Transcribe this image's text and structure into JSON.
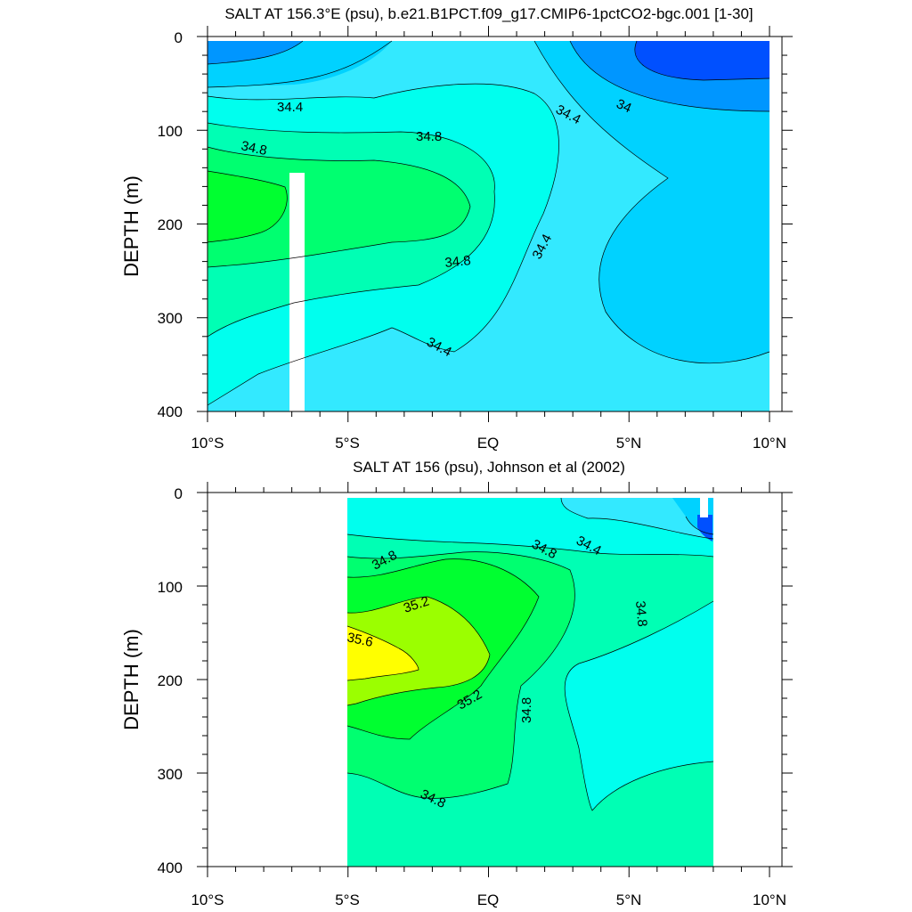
{
  "figure": {
    "panels": [
      {
        "title": "SALT AT 156.3°E (psu), b.e21.B1PCT.f09_g17.CMIP6-1pctCO2-bgc.001 [1-30]",
        "ylabel": "DEPTH (m)",
        "yticks": [
          "0",
          "100",
          "200",
          "300",
          "400"
        ],
        "xticks": [
          "10°S",
          "5°S",
          "EQ",
          "5°N",
          "10°N"
        ]
      },
      {
        "title": "SALT AT 156 (psu), Johnson et al (2002)",
        "ylabel": "DEPTH (m)",
        "yticks": [
          "0",
          "100",
          "200",
          "300",
          "400"
        ],
        "xticks": [
          "10°S",
          "5°S",
          "EQ",
          "5°N",
          "10°N"
        ]
      }
    ]
  },
  "colors": {
    "lt34.0": "#0050ff",
    "34.0-34.2": "#0096ff",
    "34.2-34.4": "#00d2ff",
    "34.4-34.6": "#33e9ff",
    "34.6-34.8": "#00ffee",
    "34.8-35.0": "#00ffb4",
    "35.0-35.2": "#00ff70",
    "35.2-35.4": "#00ff30",
    "35.4-35.6": "#9bff00",
    "gt35.6": "#ffff00"
  },
  "chart_data": [
    {
      "type": "heatmap",
      "title": "SALT AT 156.3°E (psu), b.e21.B1PCT.f09_g17.CMIP6-1pctCO2-bgc.001 [1-30]",
      "xlabel": "",
      "ylabel": "DEPTH (m)",
      "x_range": [
        -10,
        10
      ],
      "y_range": [
        0,
        400
      ],
      "y_reversed": true,
      "contour_interval": 0.2,
      "labeled_contours": [
        {
          "text": "34.4",
          "lon": -7.0,
          "depth": 70
        },
        {
          "text": "34.8",
          "lon": -8.4,
          "depth": 115
        },
        {
          "text": "34.8",
          "lon": -2.0,
          "depth": 102
        },
        {
          "text": "34.8",
          "lon": -1.0,
          "depth": 240
        },
        {
          "text": "34.4",
          "lon": -1.6,
          "depth": 330
        },
        {
          "text": "34.4",
          "lon": 2.9,
          "depth": 75
        },
        {
          "text": "34",
          "lon": 4.8,
          "depth": 68
        },
        {
          "text": "34.4",
          "lon": 1.9,
          "depth": 223
        }
      ],
      "regions": [
        {
          "band": "34.4-34.6",
          "lon": [
            -10,
            10
          ],
          "depth": [
            0,
            400
          ],
          "note": "background"
        },
        {
          "band": "34.2-34.4",
          "lon": [
            2,
            10
          ],
          "depth": [
            0,
            400
          ],
          "note": "northern low-salinity water"
        },
        {
          "band": "34.0-34.2",
          "lon": [
            4,
            10
          ],
          "depth": [
            0,
            80
          ],
          "note": "northern surface"
        },
        {
          "band": "lt34.0",
          "lon": [
            5.5,
            10
          ],
          "depth": [
            0,
            45
          ],
          "note": "northern surface core"
        },
        {
          "band": "34.2-34.4",
          "lon": [
            -10,
            -4.5
          ],
          "depth": [
            0,
            60
          ],
          "note": "southern surface"
        },
        {
          "band": "34.6-34.8",
          "lon": [
            -10,
            2
          ],
          "depth": [
            80,
            340
          ]
        },
        {
          "band": "34.8-35.0",
          "lon": [
            -10,
            0
          ],
          "depth": [
            110,
            300
          ]
        },
        {
          "band": "35.0-35.2",
          "lon": [
            -10,
            -0.6
          ],
          "depth": [
            145,
            215
          ],
          "note": "tongue maximum"
        },
        {
          "band": "35.2-35.4",
          "lon": [
            -10,
            -8.6
          ],
          "depth": [
            160,
            215
          ]
        }
      ],
      "missing": [
        {
          "lon": [
            -7.3,
            -6.8
          ],
          "depth": [
            145,
            400
          ]
        }
      ]
    },
    {
      "type": "heatmap",
      "title": "SALT AT 156 (psu), Johnson et al (2002)",
      "xlabel": "",
      "ylabel": "DEPTH (m)",
      "x_range": [
        -10,
        10
      ],
      "y_range": [
        0,
        400
      ],
      "y_reversed": true,
      "data_lon_extent": [
        -5,
        8
      ],
      "contour_interval": 0.2,
      "labeled_contours": [
        {
          "text": "34.8",
          "lon": -3.6,
          "depth": 70
        },
        {
          "text": "35.2",
          "lon": -2.5,
          "depth": 113
        },
        {
          "text": "35.6",
          "lon": -4.5,
          "depth": 153
        },
        {
          "text": "35.2",
          "lon": -0.5,
          "depth": 222
        },
        {
          "text": "34.8",
          "lon": 1.4,
          "depth": 225
        },
        {
          "text": "34.8",
          "lon": 2.0,
          "depth": 55
        },
        {
          "text": "34.4",
          "lon": 3.7,
          "depth": 48
        },
        {
          "text": "34.8",
          "lon": 5.5,
          "depth": 130
        },
        {
          "text": "34.8",
          "lon": -1.9,
          "depth": 330
        }
      ],
      "regions": [
        {
          "band": "34.8-35.0",
          "lon": [
            -5,
            8
          ],
          "depth": [
            0,
            400
          ],
          "note": "background"
        },
        {
          "band": "34.6-34.8",
          "lon": [
            -5,
            8
          ],
          "depth": [
            0,
            60
          ],
          "note": "surface"
        },
        {
          "band": "34.6-34.8",
          "lon": [
            3,
            8
          ],
          "depth": [
            170,
            330
          ],
          "note": "northern low-salinity tongue"
        },
        {
          "band": "34.4-34.6",
          "lon": [
            3.8,
            8
          ],
          "depth": [
            0,
            40
          ]
        },
        {
          "band": "34.2-34.4",
          "lon": [
            7.2,
            8
          ],
          "depth": [
            0,
            30
          ]
        },
        {
          "band": "35.0-35.2",
          "lon": [
            -5,
            2.5
          ],
          "depth": [
            60,
            320
          ]
        },
        {
          "band": "35.2-35.4",
          "lon": [
            -5,
            0
          ],
          "depth": [
            70,
            260
          ]
        },
        {
          "band": "35.4-35.6",
          "lon": [
            -5,
            -0.9
          ],
          "depth": [
            120,
            210
          ]
        },
        {
          "band": "gt35.6",
          "lon": [
            -5,
            -2.4
          ],
          "depth": [
            125,
            185
          ],
          "note": "salinity maximum"
        }
      ],
      "missing": [
        {
          "lon": [
            -10,
            -5
          ],
          "depth": [
            0,
            400
          ]
        },
        {
          "lon": [
            8,
            10
          ],
          "depth": [
            0,
            400
          ]
        }
      ]
    }
  ]
}
